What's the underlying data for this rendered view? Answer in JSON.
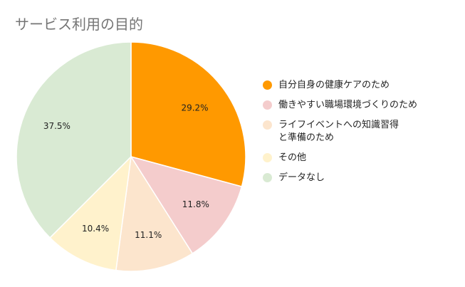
{
  "chart_data": {
    "type": "pie",
    "title": "サービス利用の目的",
    "slices": [
      {
        "label": "自分自身の健康ケアのため",
        "value": 29.2,
        "value_label": "29.2%",
        "color": "#ff9900"
      },
      {
        "label": "働きやすい職場環境づくりのため",
        "value": 11.8,
        "value_label": "11.8%",
        "color": "#f4cccc"
      },
      {
        "label": "ライフイベントへの知識習得と準備のため",
        "value": 11.1,
        "value_label": "11.1%",
        "color": "#fce5cd"
      },
      {
        "label": "その他",
        "value": 10.4,
        "value_label": "10.4%",
        "color": "#fff2cc"
      },
      {
        "label": "データなし",
        "value": 37.5,
        "value_label": "37.5%",
        "color": "#d9ead3"
      }
    ],
    "start_angle": "12 o'clock",
    "direction": "clockwise",
    "legend_position": "right"
  }
}
